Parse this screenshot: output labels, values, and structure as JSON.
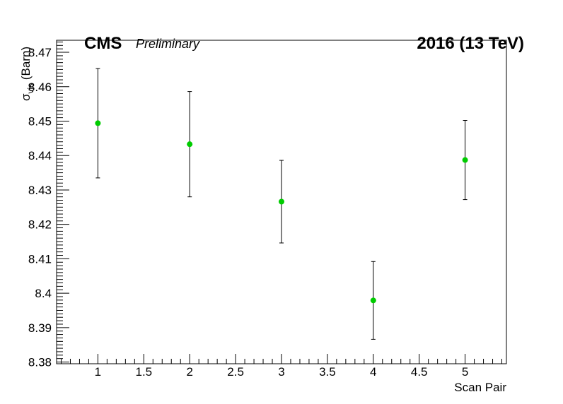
{
  "chart_data": {
    "type": "scatter",
    "title": "",
    "xlabel": "Scan Pair",
    "ylabel_main": "σ",
    "ylabel_sub": "vis",
    "ylabel_unit": " (Barn)",
    "xlim": [
      0.55,
      5.45
    ],
    "ylim": [
      8.3795,
      8.4735
    ],
    "x_ticks_major": [
      1,
      1.5,
      2,
      2.5,
      3,
      3.5,
      4,
      4.5,
      5
    ],
    "x_tick_labels": [
      "1",
      "1.5",
      "2",
      "2.5",
      "3",
      "3.5",
      "4",
      "4.5",
      "5"
    ],
    "y_ticks_major": [
      8.38,
      8.39,
      8.4,
      8.41,
      8.42,
      8.43,
      8.44,
      8.45,
      8.46,
      8.47
    ],
    "y_tick_labels": [
      "8.38",
      "8.39",
      "8.4",
      "8.41",
      "8.42",
      "8.43",
      "8.44",
      "8.45",
      "8.46",
      "8.47"
    ],
    "grid": false,
    "marker_color": "#00cc00",
    "errorbar_color": "#000000",
    "points": [
      {
        "x": 1,
        "y": 8.4494,
        "err": 0.0159
      },
      {
        "x": 2,
        "y": 8.4433,
        "err": 0.0153
      },
      {
        "x": 3,
        "y": 8.4266,
        "err": 0.012
      },
      {
        "x": 4,
        "y": 8.3979,
        "err": 0.0113
      },
      {
        "x": 5,
        "y": 8.4387,
        "err": 0.0115
      }
    ]
  },
  "annotations": {
    "experiment": "CMS",
    "status": "Preliminary",
    "energy": "2016  (13 TeV)"
  }
}
